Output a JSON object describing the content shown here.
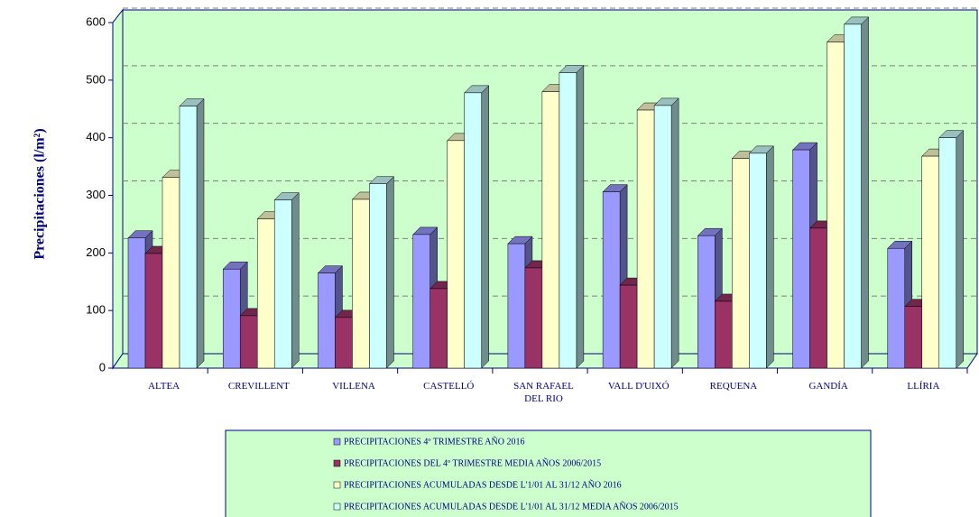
{
  "chart_data": {
    "type": "bar3d",
    "y_label": "Precipitaciones (l/m²)",
    "categories": [
      "ALTEA",
      "CREVILLENT",
      "VILLENA",
      "CASTELLÓ",
      "SAN RAFAEL DEL RIO",
      "VALL D'UIXÓ",
      "REQUENA",
      "GANDÍA",
      "LLÍRIA"
    ],
    "series": [
      {
        "name": "PRECIPITACIONES 4º TRIMESTRE AÑO 2016",
        "color": "#9999ff",
        "values": [
          226,
          172,
          165,
          232,
          216,
          306,
          230,
          379,
          208
        ]
      },
      {
        "name": "PRECIPITACIONES DEL 4º TRIMESTRE MEDIA AÑOS 2006/2015",
        "color": "#993366",
        "values": [
          199,
          91,
          88,
          138,
          174,
          144,
          116,
          243,
          107
        ]
      },
      {
        "name": "PRECIPITACIONES ACUMULADAS DESDE L'1/01 AL 31/12 AÑO 2016",
        "color": "#ffffcc",
        "values": [
          331,
          259,
          293,
          395,
          480,
          448,
          364,
          566,
          368
        ]
      },
      {
        "name": "PRECIPITACIONES ACUMULADAS DESDE L'1/01 AL 31/12 MEDIA AÑOS 2006/2015",
        "color": "#ccffff",
        "values": [
          455,
          292,
          320,
          478,
          513,
          456,
          373,
          597,
          400
        ]
      }
    ],
    "ylim": [
      0,
      600
    ],
    "yticks": [
      0,
      100,
      200,
      300,
      400,
      500,
      600
    ],
    "grid": true
  }
}
